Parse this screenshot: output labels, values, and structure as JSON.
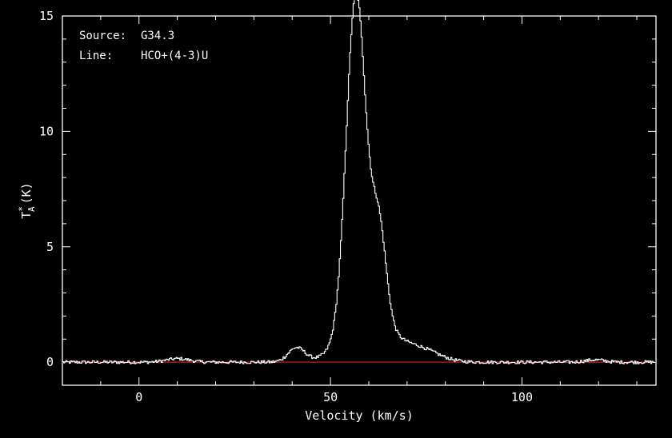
{
  "chart_data": {
    "type": "line",
    "annotations": [
      {
        "key": "Source:",
        "value": "G34.3"
      },
      {
        "key": "Line:",
        "value": "HCO+(4-3)U"
      }
    ],
    "xlabel": "Velocity (km/s)",
    "ylabel": "T",
    "ylabel_sup": "*",
    "ylabel_sub": "A",
    "ylabel_unit": "(K)",
    "xlim": [
      -20,
      135
    ],
    "ylim": [
      -1,
      15
    ],
    "xticks": [
      0,
      50,
      100
    ],
    "yticks": [
      0,
      5,
      10,
      15
    ],
    "xtick_labels": [
      "0",
      "50",
      "100"
    ],
    "ytick_labels": [
      "0",
      "5",
      "10",
      "15"
    ],
    "grid": false,
    "baseline": {
      "y": 0,
      "color": "#d01818"
    },
    "series": [
      {
        "color": "#ffffff",
        "components": [
          {
            "center": 56.5,
            "amplitude": 14.2,
            "width": 2.5
          },
          {
            "center": 62.5,
            "amplitude": 4.1,
            "width": 1.9
          },
          {
            "center": 59.5,
            "amplitude": 2.0,
            "width": 6.0
          },
          {
            "center": 41.0,
            "amplitude": 0.62,
            "width": 2.2
          },
          {
            "center": 73.0,
            "amplitude": 0.55,
            "width": 5.0
          },
          {
            "center": 10.0,
            "amplitude": 0.15,
            "width": 3.0
          },
          {
            "center": 119.0,
            "amplitude": 0.1,
            "width": 2.5
          }
        ],
        "noise": 0.07,
        "x_step": 0.3
      }
    ]
  }
}
